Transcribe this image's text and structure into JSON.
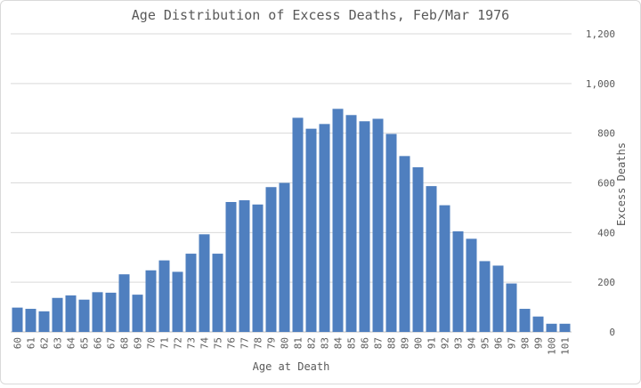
{
  "chart_data": {
    "type": "bar",
    "title": "Age Distribution of Excess Deaths, Feb/Mar 1976",
    "xlabel": "Age at Death",
    "ylabel": "Excess Deaths",
    "ylim": [
      0,
      1200
    ],
    "y_ticks": [
      "0",
      "200",
      "400",
      "600",
      "800",
      "1,000",
      "1,200"
    ],
    "y_axis_side": "right",
    "grid": true,
    "legend": "none",
    "bar_color": "#4f7fbf",
    "categories": [
      "60",
      "61",
      "62",
      "63",
      "64",
      "65",
      "66",
      "67",
      "68",
      "69",
      "70",
      "71",
      "72",
      "73",
      "74",
      "75",
      "76",
      "77",
      "78",
      "79",
      "80",
      "81",
      "82",
      "83",
      "84",
      "85",
      "86",
      "87",
      "88",
      "89",
      "90",
      "91",
      "92",
      "93",
      "94",
      "95",
      "96",
      "97",
      "98",
      "99",
      "100",
      "101"
    ],
    "values": [
      98,
      93,
      83,
      137,
      147,
      130,
      160,
      158,
      232,
      150,
      248,
      288,
      242,
      315,
      393,
      315,
      523,
      530,
      513,
      583,
      600,
      862,
      818,
      837,
      898,
      873,
      848,
      858,
      797,
      708,
      663,
      587,
      510,
      405,
      375,
      285,
      267,
      195,
      93,
      62,
      33,
      33
    ]
  }
}
